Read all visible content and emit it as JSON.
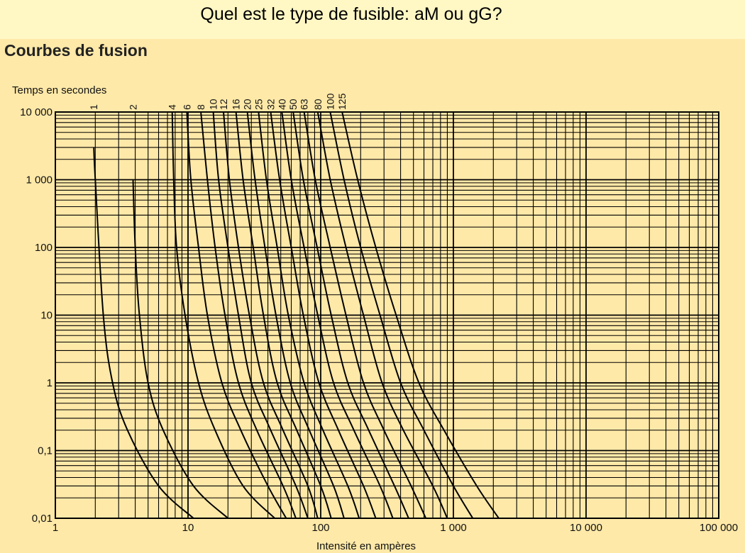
{
  "question": "Quel est le type de fusible: aM ou gG?",
  "heading": "Courbes de fusion",
  "colors": {
    "background": "#ffe9a8",
    "banner": "#fff7c4",
    "ink": "#000000"
  },
  "chart_data": {
    "type": "line",
    "title": "Courbes de fusion",
    "ylabel": "Temps en secondes",
    "xlabel": "Intensité en ampères",
    "xscale": "log",
    "yscale": "log",
    "xlim": [
      1,
      100000
    ],
    "ylim": [
      0.01,
      10000
    ],
    "grid": true,
    "x_tick_labels": [
      {
        "value": 1,
        "label": "1"
      },
      {
        "value": 10,
        "label": "10"
      },
      {
        "value": 100,
        "label": "100"
      },
      {
        "value": 1000,
        "label": "1 000"
      },
      {
        "value": 10000,
        "label": "10 000"
      },
      {
        "value": 100000,
        "label": "100 000"
      }
    ],
    "y_tick_labels": [
      {
        "value": 10000,
        "label": "10 000"
      },
      {
        "value": 1000,
        "label": "1 000"
      },
      {
        "value": 100,
        "label": "100"
      },
      {
        "value": 10,
        "label": "10"
      },
      {
        "value": 1,
        "label": "1"
      },
      {
        "value": 0.1,
        "label": "0,1"
      },
      {
        "value": 0.01,
        "label": "0,01"
      }
    ],
    "series": [
      {
        "name": "1",
        "points": [
          [
            1.95,
            3000
          ],
          [
            2.0,
            1000
          ],
          [
            2.3,
            10
          ],
          [
            2.7,
            1
          ],
          [
            3.5,
            0.2
          ],
          [
            6.0,
            0.03
          ],
          [
            11,
            0.01
          ]
        ]
      },
      {
        "name": "2",
        "points": [
          [
            3.85,
            1000
          ],
          [
            4.0,
            100
          ],
          [
            4.3,
            10
          ],
          [
            5.0,
            1
          ],
          [
            6.5,
            0.2
          ],
          [
            11,
            0.03
          ],
          [
            20,
            0.01
          ]
        ]
      },
      {
        "name": "4",
        "points": [
          [
            7.6,
            10000
          ],
          [
            7.8,
            1000
          ],
          [
            8.2,
            100
          ],
          [
            9.5,
            10
          ],
          [
            12,
            1
          ],
          [
            16,
            0.2
          ],
          [
            26,
            0.03
          ],
          [
            45,
            0.01
          ]
        ]
      },
      {
        "name": "6",
        "points": [
          [
            9.8,
            10000
          ],
          [
            10.5,
            1000
          ],
          [
            12,
            100
          ],
          [
            14,
            10
          ],
          [
            18,
            1
          ],
          [
            25,
            0.2
          ],
          [
            40,
            0.03
          ],
          [
            55,
            0.01
          ]
        ]
      },
      {
        "name": "8",
        "points": [
          [
            12.5,
            10000
          ],
          [
            14,
            1000
          ],
          [
            16,
            100
          ],
          [
            19,
            10
          ],
          [
            24,
            1
          ],
          [
            33,
            0.2
          ],
          [
            52,
            0.03
          ],
          [
            65,
            0.01
          ]
        ]
      },
      {
        "name": "10",
        "points": [
          [
            15.5,
            10000
          ],
          [
            17,
            1000
          ],
          [
            20,
            100
          ],
          [
            24,
            10
          ],
          [
            30,
            1
          ],
          [
            42,
            0.2
          ],
          [
            65,
            0.03
          ],
          [
            80,
            0.01
          ]
        ]
      },
      {
        "name": "12",
        "points": [
          [
            18.5,
            10000
          ],
          [
            20.5,
            1000
          ],
          [
            24,
            100
          ],
          [
            29,
            10
          ],
          [
            37,
            1
          ],
          [
            52,
            0.2
          ],
          [
            80,
            0.03
          ],
          [
            95,
            0.01
          ]
        ]
      },
      {
        "name": "16",
        "points": [
          [
            23,
            10000
          ],
          [
            26,
            1000
          ],
          [
            31,
            100
          ],
          [
            37,
            10
          ],
          [
            47,
            1
          ],
          [
            66,
            0.2
          ],
          [
            100,
            0.03
          ],
          [
            120,
            0.01
          ]
        ]
      },
      {
        "name": "20",
        "points": [
          [
            28,
            10000
          ],
          [
            32,
            1000
          ],
          [
            38,
            100
          ],
          [
            46,
            10
          ],
          [
            59,
            1
          ],
          [
            82,
            0.2
          ],
          [
            125,
            0.03
          ],
          [
            150,
            0.01
          ]
        ]
      },
      {
        "name": "25",
        "points": [
          [
            34,
            10000
          ],
          [
            39,
            1000
          ],
          [
            47,
            100
          ],
          [
            57,
            10
          ],
          [
            75,
            1
          ],
          [
            104,
            0.2
          ],
          [
            160,
            0.03
          ],
          [
            195,
            0.01
          ]
        ]
      },
      {
        "name": "32",
        "points": [
          [
            42,
            10000
          ],
          [
            49,
            1000
          ],
          [
            60,
            100
          ],
          [
            74,
            10
          ],
          [
            97,
            1
          ],
          [
            136,
            0.2
          ],
          [
            210,
            0.03
          ],
          [
            260,
            0.01
          ]
        ]
      },
      {
        "name": "40",
        "points": [
          [
            51,
            10000
          ],
          [
            60,
            1000
          ],
          [
            75,
            100
          ],
          [
            95,
            10
          ],
          [
            125,
            1
          ],
          [
            178,
            0.2
          ],
          [
            280,
            0.03
          ],
          [
            350,
            0.01
          ]
        ]
      },
      {
        "name": "50",
        "points": [
          [
            62,
            10000
          ],
          [
            74,
            1000
          ],
          [
            94,
            100
          ],
          [
            120,
            10
          ],
          [
            160,
            1
          ],
          [
            230,
            0.2
          ],
          [
            360,
            0.03
          ],
          [
            460,
            0.01
          ]
        ]
      },
      {
        "name": "63",
        "points": [
          [
            75,
            10000
          ],
          [
            91,
            1000
          ],
          [
            118,
            100
          ],
          [
            155,
            10
          ],
          [
            210,
            1
          ],
          [
            300,
            0.2
          ],
          [
            480,
            0.03
          ],
          [
            620,
            0.01
          ]
        ]
      },
      {
        "name": "80",
        "points": [
          [
            95,
            10000
          ],
          [
            118,
            1000
          ],
          [
            155,
            100
          ],
          [
            210,
            10
          ],
          [
            290,
            1
          ],
          [
            420,
            0.2
          ],
          [
            700,
            0.03
          ],
          [
            900,
            0.01
          ]
        ]
      },
      {
        "name": "100",
        "points": [
          [
            118,
            10000
          ],
          [
            150,
            1000
          ],
          [
            200,
            100
          ],
          [
            280,
            10
          ],
          [
            400,
            1
          ],
          [
            600,
            0.2
          ],
          [
            1000,
            0.03
          ],
          [
            1400,
            0.01
          ]
        ]
      },
      {
        "name": "125",
        "points": [
          [
            145,
            10000
          ],
          [
            190,
            1000
          ],
          [
            260,
            100
          ],
          [
            370,
            10
          ],
          [
            550,
            1
          ],
          [
            850,
            0.2
          ],
          [
            1500,
            0.03
          ],
          [
            2200,
            0.01
          ]
        ]
      }
    ]
  }
}
